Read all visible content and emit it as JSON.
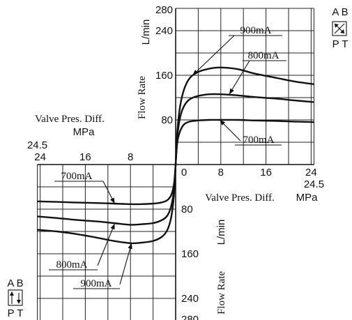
{
  "chart_data": {
    "type": "line",
    "quadrants": [
      {
        "id": "A-T",
        "xlabel": "Valve Pres. Diff.",
        "xunit": "MPa",
        "ylabel": "Flow Rate",
        "yunit": "L/min",
        "x_ticks": [
          "0",
          "8",
          "16",
          "24"
        ],
        "x_max_label": "24.5",
        "y_ticks": [
          "80",
          "160",
          "240"
        ],
        "y_max_label": "280",
        "xlim": [
          0,
          24.5
        ],
        "ylim": [
          0,
          280
        ],
        "series": [
          {
            "name": "900mA",
            "x": [
              0,
              0.3,
              0.8,
              1.5,
              2.5,
              4,
              6,
              8,
              11,
              14,
              18,
              21,
              24.5
            ],
            "y": [
              0,
              60,
              105,
              135,
              155,
              166,
              172,
              174,
              171,
              163,
              155,
              149,
              144
            ]
          },
          {
            "name": "800mA",
            "x": [
              0,
              0.3,
              0.8,
              1.5,
              2.5,
              4,
              6,
              8,
              11,
              14,
              18,
              21,
              24.5
            ],
            "y": [
              0,
              50,
              85,
              105,
              117,
              123,
              126,
              126,
              124,
              121,
              118,
              115,
              112
            ]
          },
          {
            "name": "700mA",
            "x": [
              0,
              0.3,
              0.8,
              1.5,
              2.5,
              4,
              6,
              8,
              11,
              14,
              18,
              21,
              24.5
            ],
            "y": [
              0,
              40,
              60,
              72,
              77,
              79,
              80,
              80,
              80,
              79,
              78,
              77,
              76
            ]
          }
        ]
      },
      {
        "id": "P-B",
        "xlabel": "Valve Pres. Diff.",
        "xunit": "MPa",
        "ylabel": "Flow Rate",
        "yunit": "L/min",
        "x_ticks": [
          "24",
          "16",
          "8"
        ],
        "x_max_label": "24.5",
        "y_ticks": [
          "80",
          "160",
          "240"
        ],
        "y_max_label": "280",
        "xlim": [
          0,
          24.5
        ],
        "ylim": [
          0,
          280
        ],
        "series": [
          {
            "name": "700mA",
            "x": [
              0,
              0.3,
              0.8,
              1.5,
              2.5,
              4,
              6,
              8,
              11,
              14,
              18,
              21,
              24.5
            ],
            "y": [
              0,
              35,
              55,
              64,
              68,
              70,
              71,
              71,
              70,
              69,
              68,
              67,
              66
            ]
          },
          {
            "name": "800mA",
            "x": [
              0,
              0.3,
              0.8,
              1.5,
              2.5,
              4,
              6,
              8,
              11,
              14,
              18,
              21,
              24.5
            ],
            "y": [
              0,
              45,
              75,
              92,
              100,
              105,
              107,
              108,
              105,
              102,
              99,
              96,
              93
            ]
          },
          {
            "name": "900mA",
            "x": [
              0,
              0.3,
              0.8,
              1.5,
              2.5,
              4,
              6,
              8,
              11,
              14,
              18,
              21,
              24.5
            ],
            "y": [
              0,
              55,
              95,
              118,
              130,
              137,
              140,
              141,
              137,
              131,
              124,
              120,
              117
            ]
          }
        ]
      }
    ]
  },
  "symbols": {
    "upper_right": {
      "top": "A B",
      "bottom": "P T"
    },
    "lower_left": {
      "top": "A B",
      "bottom": "P T"
    }
  }
}
